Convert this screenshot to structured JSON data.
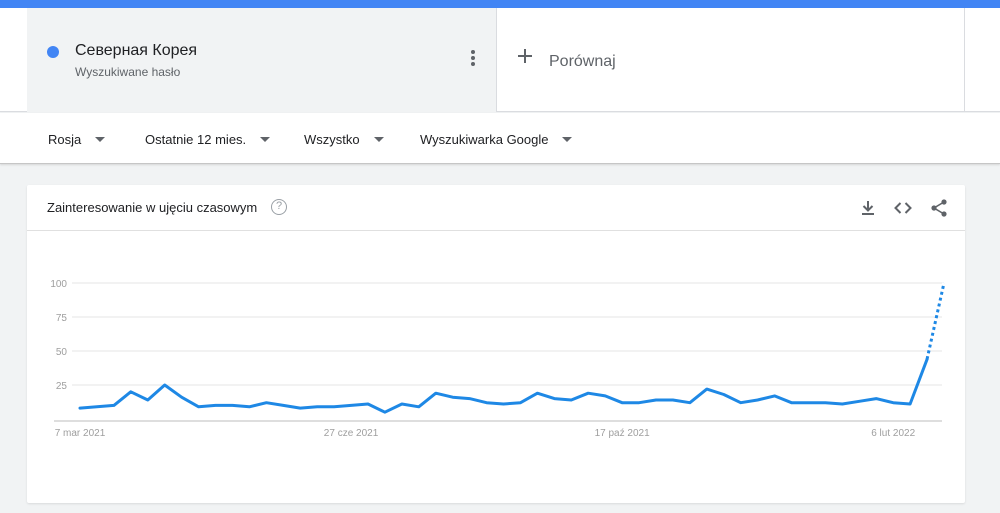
{
  "term": {
    "name": "Северная Корея",
    "subtitle": "Wyszukiwane hasło",
    "color": "#4285f4"
  },
  "compare": {
    "label": "Porównaj"
  },
  "filters": [
    {
      "label": "Rosja"
    },
    {
      "label": "Ostatnie 12 mies."
    },
    {
      "label": "Wszystko"
    },
    {
      "label": "Wyszukiwarka Google"
    }
  ],
  "card": {
    "title": "Zainteresowanie w ujęciu czasowym",
    "help_glyph": "?",
    "icons": [
      "download-icon",
      "embed-icon",
      "share-icon"
    ]
  },
  "chart_data": {
    "type": "line",
    "ylim": [
      0,
      100
    ],
    "yticks": [
      25,
      50,
      75,
      100
    ],
    "grid": true,
    "x_tick_labels": [
      {
        "label": "7 mar 2021",
        "index": 0
      },
      {
        "label": "27 cze 2021",
        "index": 16
      },
      {
        "label": "17 paź 2021",
        "index": 32
      },
      {
        "label": "6 lut 2022",
        "index": 48
      }
    ],
    "line_color": "#1e88e5",
    "values": [
      8,
      9,
      10,
      20,
      14,
      25,
      16,
      9,
      10,
      10,
      9,
      12,
      10,
      8,
      9,
      9,
      10,
      11,
      5,
      11,
      9,
      19,
      16,
      15,
      12,
      11,
      12,
      19,
      15,
      14,
      19,
      17,
      12,
      12,
      14,
      14,
      12,
      22,
      18,
      12,
      14,
      17,
      12,
      12,
      12,
      11,
      13,
      15,
      12,
      11,
      44
    ],
    "partial_values": [
      44,
      100
    ]
  }
}
